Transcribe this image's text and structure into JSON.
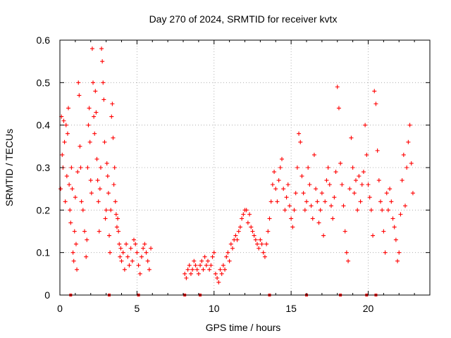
{
  "chart_data": {
    "type": "scatter",
    "title": "Day 270 of 2024, SRMTID for receiver kvtx",
    "xlabel": "GPS time / hours",
    "ylabel": "SRMTID / TECUs",
    "xlim": [
      0,
      24
    ],
    "ylim": [
      0,
      0.6
    ],
    "xticks": [
      0,
      5,
      10,
      15,
      20
    ],
    "yticks": [
      0,
      0.1,
      0.2,
      0.3,
      0.4,
      0.5,
      0.6
    ],
    "xtick_labels": [
      "0",
      "5",
      "10",
      "15",
      "20"
    ],
    "ytick_labels": [
      "0",
      "0.1",
      "0.2",
      "0.3",
      "0.4",
      "0.5",
      "0.6"
    ],
    "grid": true,
    "marker": "+",
    "color": "#ff0000",
    "series": [
      {
        "name": "SRMTID",
        "points": [
          [
            0.05,
            0.25
          ],
          [
            0.1,
            0.42
          ],
          [
            0.15,
            0.33
          ],
          [
            0.2,
            0.3
          ],
          [
            0.25,
            0.41
          ],
          [
            0.3,
            0.36
          ],
          [
            0.35,
            0.22
          ],
          [
            0.4,
            0.4
          ],
          [
            0.45,
            0.28
          ],
          [
            0.5,
            0.38
          ],
          [
            0.55,
            0.44
          ],
          [
            0.6,
            0.26
          ],
          [
            0.65,
            0.2
          ],
          [
            0.7,
            0.17
          ],
          [
            0.75,
            0.3
          ],
          [
            0.8,
            0.25
          ],
          [
            0.85,
            0.1
          ],
          [
            0.9,
            0.08
          ],
          [
            0.95,
            0.15
          ],
          [
            1.0,
            0.23
          ],
          [
            1.05,
            0.12
          ],
          [
            1.1,
            0.06
          ],
          [
            1.15,
            0.29
          ],
          [
            1.2,
            0.5
          ],
          [
            1.25,
            0.47
          ],
          [
            1.3,
            0.35
          ],
          [
            1.35,
            0.3
          ],
          [
            1.4,
            0.22
          ],
          [
            1.5,
            0.2
          ],
          [
            1.6,
            0.15
          ],
          [
            1.7,
            0.09
          ],
          [
            1.75,
            0.13
          ],
          [
            1.8,
            0.3
          ],
          [
            1.85,
            0.4
          ],
          [
            1.9,
            0.44
          ],
          [
            1.95,
            0.36
          ],
          [
            2.0,
            0.27
          ],
          [
            2.05,
            0.24
          ],
          [
            2.1,
            0.58
          ],
          [
            2.15,
            0.5
          ],
          [
            2.2,
            0.42
          ],
          [
            2.25,
            0.38
          ],
          [
            2.3,
            0.48
          ],
          [
            2.35,
            0.43
          ],
          [
            2.4,
            0.32
          ],
          [
            2.45,
            0.27
          ],
          [
            2.5,
            0.22
          ],
          [
            2.55,
            0.15
          ],
          [
            2.6,
            0.25
          ],
          [
            2.65,
            0.3
          ],
          [
            2.7,
            0.58
          ],
          [
            2.75,
            0.55
          ],
          [
            2.8,
            0.5
          ],
          [
            2.85,
            0.46
          ],
          [
            2.9,
            0.36
          ],
          [
            2.95,
            0.18
          ],
          [
            3.0,
            0.2
          ],
          [
            3.05,
            0.31
          ],
          [
            3.1,
            0.28
          ],
          [
            3.15,
            0.24
          ],
          [
            3.2,
            0.14
          ],
          [
            3.25,
            0.1
          ],
          [
            3.3,
            0.2
          ],
          [
            3.35,
            0.42
          ],
          [
            3.4,
            0.45
          ],
          [
            3.45,
            0.37
          ],
          [
            3.5,
            0.26
          ],
          [
            3.55,
            0.3
          ],
          [
            3.6,
            0.22
          ],
          [
            3.65,
            0.19
          ],
          [
            3.7,
            0.16
          ],
          [
            3.75,
            0.18
          ],
          [
            3.8,
            0.15
          ],
          [
            3.85,
            0.12
          ],
          [
            3.9,
            0.09
          ],
          [
            3.95,
            0.11
          ],
          [
            4.0,
            0.08
          ],
          [
            4.1,
            0.1
          ],
          [
            4.2,
            0.06
          ],
          [
            4.3,
            0.12
          ],
          [
            4.4,
            0.09
          ],
          [
            4.5,
            0.07
          ],
          [
            4.6,
            0.11
          ],
          [
            4.7,
            0.08
          ],
          [
            4.8,
            0.13
          ],
          [
            4.9,
            0.12
          ],
          [
            5.0,
            0.1
          ],
          [
            5.1,
            0.07
          ],
          [
            5.2,
            0.05
          ],
          [
            5.3,
            0.09
          ],
          [
            5.4,
            0.11
          ],
          [
            5.5,
            0.12
          ],
          [
            5.6,
            0.1
          ],
          [
            5.7,
            0.08
          ],
          [
            5.8,
            0.06
          ],
          [
            5.9,
            0.11
          ],
          [
            8.1,
            0.05
          ],
          [
            8.2,
            0.04
          ],
          [
            8.3,
            0.06
          ],
          [
            8.4,
            0.07
          ],
          [
            8.5,
            0.05
          ],
          [
            8.6,
            0.06
          ],
          [
            8.7,
            0.08
          ],
          [
            8.8,
            0.07
          ],
          [
            8.9,
            0.06
          ],
          [
            9.0,
            0.05
          ],
          [
            9.1,
            0.07
          ],
          [
            9.2,
            0.08
          ],
          [
            9.3,
            0.06
          ],
          [
            9.4,
            0.09
          ],
          [
            9.5,
            0.07
          ],
          [
            9.6,
            0.08
          ],
          [
            9.7,
            0.06
          ],
          [
            9.8,
            0.07
          ],
          [
            9.9,
            0.09
          ],
          [
            10.0,
            0.1
          ],
          [
            10.1,
            0.05
          ],
          [
            10.2,
            0.04
          ],
          [
            10.3,
            0.03
          ],
          [
            10.4,
            0.06
          ],
          [
            10.5,
            0.05
          ],
          [
            10.6,
            0.07
          ],
          [
            10.7,
            0.06
          ],
          [
            10.8,
            0.09
          ],
          [
            10.9,
            0.1
          ],
          [
            11.0,
            0.08
          ],
          [
            11.1,
            0.12
          ],
          [
            11.2,
            0.11
          ],
          [
            11.3,
            0.13
          ],
          [
            11.4,
            0.14
          ],
          [
            11.5,
            0.13
          ],
          [
            11.6,
            0.15
          ],
          [
            11.7,
            0.16
          ],
          [
            11.8,
            0.18
          ],
          [
            11.9,
            0.19
          ],
          [
            12.0,
            0.2
          ],
          [
            12.1,
            0.2
          ],
          [
            12.2,
            0.17
          ],
          [
            12.3,
            0.19
          ],
          [
            12.4,
            0.16
          ],
          [
            12.5,
            0.15
          ],
          [
            12.6,
            0.14
          ],
          [
            12.7,
            0.13
          ],
          [
            12.8,
            0.12
          ],
          [
            12.9,
            0.11
          ],
          [
            13.0,
            0.13
          ],
          [
            13.1,
            0.12
          ],
          [
            13.2,
            0.1
          ],
          [
            13.3,
            0.09
          ],
          [
            13.4,
            0.12
          ],
          [
            13.5,
            0.15
          ],
          [
            13.6,
            0.18
          ],
          [
            13.7,
            0.22
          ],
          [
            13.8,
            0.26
          ],
          [
            13.9,
            0.29
          ],
          [
            14.0,
            0.25
          ],
          [
            14.1,
            0.22
          ],
          [
            14.2,
            0.27
          ],
          [
            14.3,
            0.3
          ],
          [
            14.4,
            0.32
          ],
          [
            14.5,
            0.25
          ],
          [
            14.6,
            0.2
          ],
          [
            14.7,
            0.23
          ],
          [
            14.8,
            0.26
          ],
          [
            14.9,
            0.21
          ],
          [
            15.0,
            0.18
          ],
          [
            15.1,
            0.16
          ],
          [
            15.2,
            0.2
          ],
          [
            15.3,
            0.24
          ],
          [
            15.4,
            0.3
          ],
          [
            15.5,
            0.38
          ],
          [
            15.6,
            0.36
          ],
          [
            15.7,
            0.28
          ],
          [
            15.8,
            0.24
          ],
          [
            15.9,
            0.2
          ],
          [
            16.0,
            0.22
          ],
          [
            16.1,
            0.3
          ],
          [
            16.2,
            0.26
          ],
          [
            16.3,
            0.21
          ],
          [
            16.4,
            0.18
          ],
          [
            16.5,
            0.33
          ],
          [
            16.6,
            0.25
          ],
          [
            16.7,
            0.22
          ],
          [
            16.8,
            0.17
          ],
          [
            16.9,
            0.2
          ],
          [
            17.0,
            0.24
          ],
          [
            17.1,
            0.14
          ],
          [
            17.2,
            0.22
          ],
          [
            17.3,
            0.27
          ],
          [
            17.4,
            0.3
          ],
          [
            17.5,
            0.26
          ],
          [
            17.6,
            0.21
          ],
          [
            17.7,
            0.18
          ],
          [
            17.8,
            0.23
          ],
          [
            17.9,
            0.29
          ],
          [
            18.0,
            0.49
          ],
          [
            18.1,
            0.44
          ],
          [
            18.2,
            0.31
          ],
          [
            18.3,
            0.26
          ],
          [
            18.4,
            0.21
          ],
          [
            18.5,
            0.15
          ],
          [
            18.6,
            0.1
          ],
          [
            18.7,
            0.08
          ],
          [
            18.8,
            0.25
          ],
          [
            18.9,
            0.37
          ],
          [
            19.0,
            0.3
          ],
          [
            19.1,
            0.24
          ],
          [
            19.2,
            0.27
          ],
          [
            19.3,
            0.2
          ],
          [
            19.4,
            0.28
          ],
          [
            19.5,
            0.22
          ],
          [
            19.6,
            0.26
          ],
          [
            19.7,
            0.29
          ],
          [
            19.8,
            0.4
          ],
          [
            19.9,
            0.33
          ],
          [
            20.0,
            0.26
          ],
          [
            20.1,
            0.23
          ],
          [
            20.2,
            0.2
          ],
          [
            20.3,
            0.14
          ],
          [
            20.4,
            0.48
          ],
          [
            20.5,
            0.45
          ],
          [
            20.6,
            0.34
          ],
          [
            20.7,
            0.27
          ],
          [
            20.8,
            0.22
          ],
          [
            20.9,
            0.2
          ],
          [
            21.0,
            0.15
          ],
          [
            21.1,
            0.1
          ],
          [
            21.2,
            0.24
          ],
          [
            21.3,
            0.2
          ],
          [
            21.4,
            0.25
          ],
          [
            21.5,
            0.22
          ],
          [
            21.6,
            0.18
          ],
          [
            21.7,
            0.16
          ],
          [
            21.8,
            0.13
          ],
          [
            21.9,
            0.08
          ],
          [
            22.0,
            0.1
          ],
          [
            22.1,
            0.19
          ],
          [
            22.2,
            0.27
          ],
          [
            22.3,
            0.33
          ],
          [
            22.4,
            0.21
          ],
          [
            22.5,
            0.3
          ],
          [
            22.6,
            0.36
          ],
          [
            22.7,
            0.4
          ],
          [
            22.8,
            0.31
          ],
          [
            22.9,
            0.24
          ]
        ]
      }
    ],
    "gap_markers_x": [
      0.7,
      3.2,
      5.1,
      8.1,
      9.1,
      13.6,
      16.0,
      18.2,
      19.9,
      20.5
    ]
  }
}
